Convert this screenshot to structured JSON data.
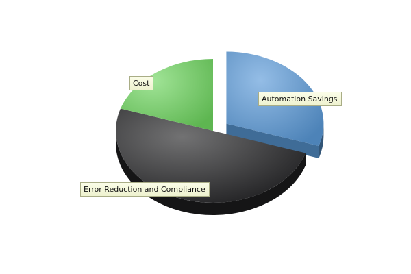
{
  "chart_data": {
    "type": "pie",
    "style": "3d-exploded",
    "slices": [
      {
        "label": "Automation Savings",
        "value": 30,
        "color": "#5a9ad8",
        "exploded": true
      },
      {
        "label": "Error Reduction and Compliance",
        "value": 50,
        "color": "#262628",
        "exploded": false
      },
      {
        "label": "Cost",
        "value": 20,
        "color": "#6fd65f",
        "exploded": false
      }
    ],
    "legend": "none",
    "labels": "callout boxes on slices"
  }
}
